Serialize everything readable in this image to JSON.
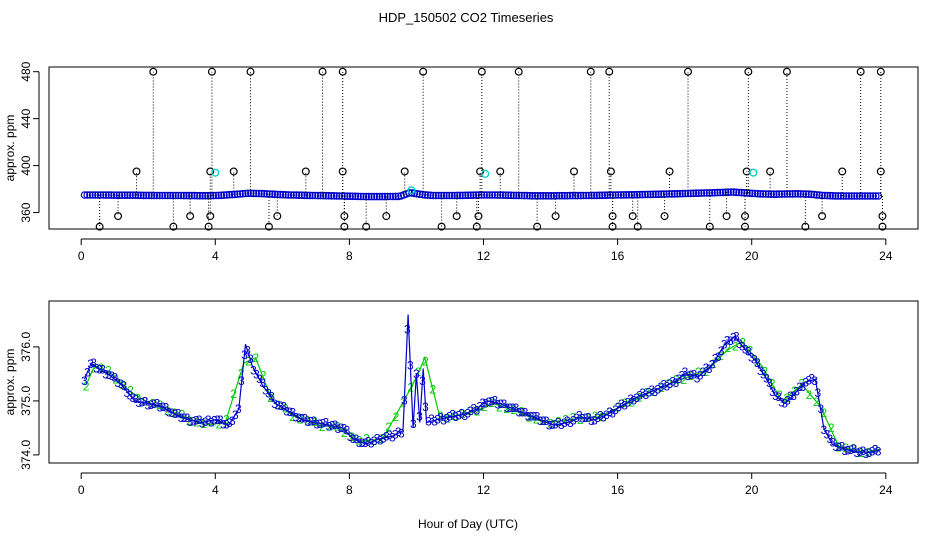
{
  "title": "HDP_150502  CO2 Timeseries",
  "xlabel": "Hour of Day (UTC)",
  "colors": {
    "primary": "#0000cc",
    "secondary": "#00cc00",
    "raw": "#000000",
    "highlight": "#00cccc"
  },
  "chart_data": [
    {
      "type": "scatter",
      "panel": "top",
      "ylabel": "approx. ppm",
      "xlim": [
        -0.96,
        24.96
      ],
      "ylim": [
        346,
        484
      ],
      "x_ticks": [
        0,
        4,
        8,
        12,
        16,
        20,
        24
      ],
      "y_ticks": [
        360,
        400,
        440,
        480
      ],
      "baseline": [
        [
          0.1,
          375
        ],
        [
          0.5,
          375
        ],
        [
          1,
          374.8
        ],
        [
          1.5,
          374.8
        ],
        [
          2,
          374.6
        ],
        [
          2.5,
          374.5
        ],
        [
          3,
          374.5
        ],
        [
          3.5,
          374.4
        ],
        [
          3.9,
          374.4
        ],
        [
          4.1,
          374.6
        ],
        [
          4.6,
          375.5
        ],
        [
          5,
          376.5
        ],
        [
          5.5,
          376
        ],
        [
          6,
          375.2
        ],
        [
          6.5,
          374.8
        ],
        [
          7,
          374.5
        ],
        [
          7.5,
          374.3
        ],
        [
          7.9,
          374
        ],
        [
          8.5,
          373.6
        ],
        [
          9,
          373.6
        ],
        [
          9.5,
          373.8
        ],
        [
          9.8,
          377
        ],
        [
          10.2,
          375.2
        ],
        [
          10.5,
          374.5
        ],
        [
          11,
          374.5
        ],
        [
          11.5,
          374.7
        ],
        [
          12,
          375
        ],
        [
          12.5,
          374.9
        ],
        [
          13,
          374.6
        ],
        [
          13.5,
          374.3
        ],
        [
          14,
          374.3
        ],
        [
          14.5,
          374.4
        ],
        [
          15,
          374.5
        ],
        [
          15.5,
          374.7
        ],
        [
          16,
          375
        ],
        [
          16.5,
          375.2
        ],
        [
          17,
          375.5
        ],
        [
          17.5,
          375.8
        ],
        [
          18,
          376.2
        ],
        [
          18.5,
          376.6
        ],
        [
          19,
          377
        ],
        [
          19.4,
          377.5
        ],
        [
          19.8,
          376.8
        ],
        [
          20.2,
          376
        ],
        [
          20.6,
          375.6
        ],
        [
          21,
          375.8
        ],
        [
          21.4,
          376
        ],
        [
          21.8,
          375.5
        ],
        [
          22.1,
          374.6
        ],
        [
          22.5,
          374.2
        ],
        [
          23,
          374.1
        ],
        [
          23.5,
          374.1
        ],
        [
          23.8,
          374.1
        ]
      ],
      "spikes_high": [
        [
          2.15,
          480
        ],
        [
          3.9,
          480
        ],
        [
          5.05,
          480
        ],
        [
          7.2,
          480
        ],
        [
          7.8,
          480
        ],
        [
          10.2,
          480
        ],
        [
          11.95,
          480
        ],
        [
          13.05,
          480
        ],
        [
          15.2,
          480
        ],
        [
          15.75,
          480
        ],
        [
          18.1,
          480
        ],
        [
          19.9,
          480
        ],
        [
          21.05,
          480
        ],
        [
          23.25,
          480
        ],
        [
          23.85,
          480
        ]
      ],
      "spikes_mid": [
        [
          1.65,
          395
        ],
        [
          3.85,
          395
        ],
        [
          4.55,
          395
        ],
        [
          6.7,
          395
        ],
        [
          7.8,
          395
        ],
        [
          9.65,
          395
        ],
        [
          11.9,
          395
        ],
        [
          12.5,
          395
        ],
        [
          14.7,
          395
        ],
        [
          15.8,
          395
        ],
        [
          17.55,
          395
        ],
        [
          19.85,
          395
        ],
        [
          20.55,
          395
        ],
        [
          22.7,
          395
        ],
        [
          23.85,
          395
        ]
      ],
      "spikes_low_a": [
        [
          1.1,
          357
        ],
        [
          3.25,
          357
        ],
        [
          3.85,
          357
        ],
        [
          5.85,
          357
        ],
        [
          7.85,
          357
        ],
        [
          9.1,
          357
        ],
        [
          11.2,
          357
        ],
        [
          11.85,
          357
        ],
        [
          14.15,
          357
        ],
        [
          15.85,
          357
        ],
        [
          16.45,
          357
        ],
        [
          17.4,
          357
        ],
        [
          19.25,
          357
        ],
        [
          19.8,
          357
        ],
        [
          22.1,
          357
        ],
        [
          23.9,
          357
        ]
      ],
      "spikes_low_b": [
        [
          0.55,
          348
        ],
        [
          2.75,
          348
        ],
        [
          3.8,
          348
        ],
        [
          5.6,
          348
        ],
        [
          7.85,
          348
        ],
        [
          8.5,
          348
        ],
        [
          10.75,
          348
        ],
        [
          11.8,
          348
        ],
        [
          13.6,
          348
        ],
        [
          15.85,
          348
        ],
        [
          16.6,
          348
        ],
        [
          18.75,
          348
        ],
        [
          19.8,
          348
        ],
        [
          21.6,
          348
        ],
        [
          23.9,
          348
        ]
      ],
      "highlight_points": [
        [
          4.0,
          394
        ],
        [
          12.05,
          393
        ],
        [
          20.05,
          394
        ],
        [
          9.85,
          379
        ]
      ]
    },
    {
      "type": "line",
      "panel": "bottom",
      "ylabel": "approx. ppm",
      "xlim": [
        -0.96,
        24.96
      ],
      "ylim": [
        373.85,
        376.85
      ],
      "x_ticks": [
        0,
        4,
        8,
        12,
        16,
        20,
        24
      ],
      "y_ticks": [
        374.0,
        375.0,
        376.0
      ],
      "marker_labels": [
        "2",
        "3"
      ],
      "series": [
        {
          "name": "3",
          "points": [
            [
              0.1,
              375.4
            ],
            [
              0.3,
              375.7
            ],
            [
              0.5,
              375.6
            ],
            [
              0.8,
              375.5
            ],
            [
              1.2,
              375.3
            ],
            [
              1.6,
              375
            ],
            [
              2,
              374.95
            ],
            [
              2.4,
              374.9
            ],
            [
              2.8,
              374.75
            ],
            [
              3.2,
              374.65
            ],
            [
              3.6,
              374.6
            ],
            [
              4,
              374.65
            ],
            [
              4.4,
              374.55
            ],
            [
              4.7,
              374.85
            ],
            [
              4.9,
              376.05
            ],
            [
              5.1,
              375.65
            ],
            [
              5.4,
              375.3
            ],
            [
              5.8,
              374.95
            ],
            [
              6.2,
              374.8
            ],
            [
              6.6,
              374.65
            ],
            [
              7,
              374.6
            ],
            [
              7.4,
              374.55
            ],
            [
              7.8,
              374.5
            ],
            [
              8.1,
              374.3
            ],
            [
              8.5,
              374.2
            ],
            [
              8.9,
              374.3
            ],
            [
              9.3,
              374.35
            ],
            [
              9.6,
              374.45
            ],
            [
              9.75,
              376.6
            ],
            [
              9.9,
              374.5
            ],
            [
              10,
              375.5
            ],
            [
              10.1,
              374.6
            ],
            [
              10.2,
              375.6
            ],
            [
              10.3,
              374.6
            ],
            [
              10.6,
              374.65
            ],
            [
              11,
              374.7
            ],
            [
              11.4,
              374.75
            ],
            [
              11.8,
              374.85
            ],
            [
              12.1,
              375
            ],
            [
              12.5,
              374.95
            ],
            [
              12.9,
              374.85
            ],
            [
              13.3,
              374.75
            ],
            [
              13.7,
              374.65
            ],
            [
              14.1,
              374.55
            ],
            [
              14.5,
              374.6
            ],
            [
              14.9,
              374.7
            ],
            [
              15.3,
              374.65
            ],
            [
              15.7,
              374.75
            ],
            [
              16.1,
              374.9
            ],
            [
              16.5,
              375.05
            ],
            [
              16.9,
              375.15
            ],
            [
              17.3,
              375.25
            ],
            [
              17.7,
              375.35
            ],
            [
              18,
              375.5
            ],
            [
              18.4,
              375.45
            ],
            [
              18.8,
              375.65
            ],
            [
              19.2,
              376.05
            ],
            [
              19.5,
              376.2
            ],
            [
              19.8,
              375.95
            ],
            [
              20.1,
              375.75
            ],
            [
              20.4,
              375.45
            ],
            [
              20.7,
              375.1
            ],
            [
              21,
              374.95
            ],
            [
              21.3,
              375.15
            ],
            [
              21.6,
              375.35
            ],
            [
              21.9,
              375.4
            ],
            [
              22.15,
              374.5
            ],
            [
              22.4,
              374.2
            ],
            [
              22.8,
              374.1
            ],
            [
              23.2,
              374.05
            ],
            [
              23.6,
              374.05
            ],
            [
              23.85,
              374.1
            ]
          ]
        },
        {
          "name": "2",
          "points": [
            [
              0.15,
              375.3
            ],
            [
              0.4,
              375.65
            ],
            [
              0.9,
              375.5
            ],
            [
              1.4,
              375.2
            ],
            [
              1.9,
              375
            ],
            [
              2.5,
              374.85
            ],
            [
              3.1,
              374.7
            ],
            [
              3.7,
              374.55
            ],
            [
              4.3,
              374.6
            ],
            [
              4.85,
              375.7
            ],
            [
              5.2,
              375.8
            ],
            [
              5.7,
              375
            ],
            [
              6.4,
              374.7
            ],
            [
              7.1,
              374.55
            ],
            [
              7.7,
              374.5
            ],
            [
              8.3,
              374.25
            ],
            [
              9,
              374.3
            ],
            [
              9.8,
              375.2
            ],
            [
              10.05,
              375.5
            ],
            [
              10.25,
              375.8
            ],
            [
              10.7,
              374.7
            ],
            [
              11.5,
              374.75
            ],
            [
              12.3,
              374.95
            ],
            [
              13,
              374.8
            ],
            [
              13.8,
              374.6
            ],
            [
              14.6,
              374.65
            ],
            [
              15.4,
              374.7
            ],
            [
              16.3,
              374.95
            ],
            [
              17.1,
              375.2
            ],
            [
              17.9,
              375.4
            ],
            [
              18.6,
              375.55
            ],
            [
              19.3,
              375.95
            ],
            [
              19.7,
              376.1
            ],
            [
              20.3,
              375.65
            ],
            [
              20.9,
              375
            ],
            [
              21.5,
              375.3
            ],
            [
              22.05,
              374.9
            ],
            [
              22.6,
              374.15
            ],
            [
              23.4,
              374.05
            ],
            [
              23.8,
              374.1
            ]
          ]
        }
      ]
    }
  ]
}
